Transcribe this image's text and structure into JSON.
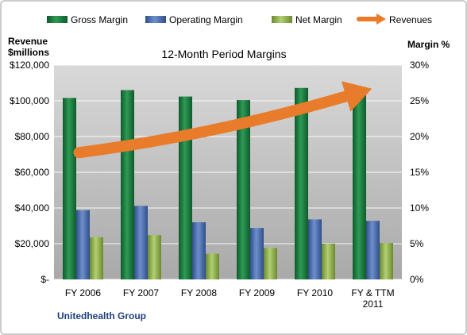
{
  "chart_data": {
    "type": "bar",
    "title": "12-Month Period Margins",
    "company": "Unitedhealth Group",
    "left_axis_title": [
      "Revenue",
      "$millions"
    ],
    "right_axis_title": "Margin %",
    "categories": [
      [
        "FY 2006"
      ],
      [
        "FY 2007"
      ],
      [
        "FY 2008"
      ],
      [
        "FY 2009"
      ],
      [
        "FY 2010"
      ],
      [
        "FY & TTM",
        "2011"
      ]
    ],
    "y_left": {
      "min": 0,
      "max": 120000,
      "ticks": [
        "$-",
        "$20,000",
        "$40,000",
        "$60,000",
        "$80,000",
        "$100,000",
        "$120,000"
      ]
    },
    "y_right": {
      "min": 0,
      "max": 30,
      "ticks": [
        "0%",
        "5%",
        "10%",
        "15%",
        "20%",
        "25%",
        "30%"
      ]
    },
    "legend_position": "top",
    "grid": true,
    "series": [
      {
        "name": "Gross Margin",
        "axis": "right",
        "unit": "%",
        "color": "#1E7A3E",
        "values": [
          25.4,
          26.5,
          25.6,
          25.1,
          26.8,
          26.9
        ]
      },
      {
        "name": "Operating Margin",
        "axis": "right",
        "unit": "%",
        "color": "#4A6FAF",
        "values": [
          9.7,
          10.3,
          8.0,
          7.2,
          8.4,
          8.2
        ]
      },
      {
        "name": "Net Margin",
        "axis": "right",
        "unit": "%",
        "color": "#8FB04E",
        "values": [
          5.9,
          6.2,
          3.6,
          4.4,
          5.0,
          5.1
        ]
      }
    ],
    "trend": {
      "name": "Revenues",
      "color": "#E87C2A",
      "style": "arrow",
      "start": 71000,
      "end": 103000
    }
  }
}
